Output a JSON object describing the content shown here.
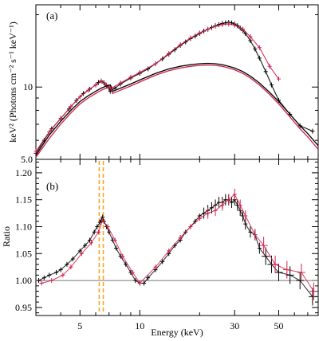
{
  "colors": {
    "black_series": "#000000",
    "red_series": "#d1204a",
    "iron_line": "#f5a623",
    "unity_line": "#777777"
  },
  "chart_data": [
    {
      "panel_label": "(a)",
      "type": "line",
      "x_scale": "log",
      "y_scale": "log",
      "xlim": [
        3.0,
        79.0
      ],
      "ylim": [
        5.0,
        22.0
      ],
      "ylabel": "keV² (Photons cm⁻² s⁻¹ keV⁻¹)",
      "y_ticks": [
        5.0,
        10
      ],
      "y_tick_labels": [
        "5.0",
        "10"
      ],
      "series": [
        {
          "style": "data",
          "color": "black",
          "x": [
            3.0,
            3.3,
            3.6,
            4.0,
            4.4,
            4.8,
            5.2,
            5.6,
            6.0,
            6.2,
            6.4,
            6.6,
            6.8,
            7.0,
            7.1,
            7.5,
            8.0,
            9.0,
            10,
            11,
            12,
            13,
            14,
            15,
            16,
            17,
            18,
            19,
            20,
            21,
            22,
            23,
            24,
            25,
            26,
            27,
            28,
            29,
            30,
            31,
            32,
            33,
            34,
            36,
            38,
            40,
            43,
            46,
            50,
            57,
            64,
            74
          ],
          "y": [
            5.3,
            6.0,
            6.7,
            7.4,
            8.1,
            8.8,
            9.4,
            9.8,
            10.2,
            10.45,
            10.6,
            10.4,
            10.1,
            9.9,
            9.6,
            9.9,
            10.3,
            10.9,
            11.4,
            11.9,
            12.5,
            13.1,
            13.7,
            14.3,
            14.9,
            15.4,
            15.9,
            16.3,
            16.7,
            17.1,
            17.4,
            17.7,
            18.0,
            18.2,
            18.4,
            18.5,
            18.6,
            18.5,
            18.3,
            18.0,
            17.6,
            17.2,
            16.7,
            15.6,
            14.4,
            13.2,
            11.6,
            10.2,
            8.8,
            7.7,
            6.9,
            6.55
          ]
        },
        {
          "style": "data",
          "color": "red",
          "x": [
            3.0,
            3.5,
            4.0,
            4.5,
            5.0,
            5.5,
            6.0,
            6.4,
            6.8,
            7.2,
            8.0,
            9.0,
            10,
            12,
            14,
            16,
            18,
            20,
            22,
            24,
            26,
            28,
            30,
            33,
            36,
            40,
            45,
            50
          ],
          "y": [
            5.4,
            6.5,
            7.4,
            8.3,
            9.1,
            9.7,
            10.2,
            10.55,
            10.2,
            9.9,
            10.4,
            11.0,
            11.5,
            12.5,
            13.8,
            15.0,
            16.0,
            16.8,
            17.4,
            17.9,
            18.2,
            18.3,
            18.1,
            17.4,
            16.2,
            14.6,
            12.2,
            10.8
          ]
        },
        {
          "style": "model",
          "color": "black",
          "x": [
            3.0,
            3.5,
            4.0,
            4.5,
            5.0,
            5.5,
            6.0,
            6.4,
            6.8,
            7.1,
            7.3,
            8.0,
            9.0,
            10,
            12,
            14,
            16,
            18,
            20,
            22,
            24,
            26,
            28,
            30,
            33,
            36,
            40,
            45,
            50,
            57,
            64,
            70,
            79
          ],
          "y": [
            5.2,
            6.3,
            7.2,
            8.0,
            8.7,
            9.2,
            9.6,
            9.9,
            10.1,
            10.2,
            9.6,
            9.9,
            10.3,
            10.7,
            11.4,
            11.9,
            12.2,
            12.4,
            12.5,
            12.55,
            12.5,
            12.4,
            12.2,
            12.0,
            11.6,
            11.1,
            10.4,
            9.5,
            8.7,
            7.7,
            6.9,
            6.4,
            5.7
          ]
        },
        {
          "style": "model",
          "color": "red",
          "x": [
            3.0,
            3.5,
            4.0,
            4.5,
            5.0,
            5.5,
            6.0,
            6.4,
            6.8,
            7.1,
            7.3,
            8.0,
            9.0,
            10,
            12,
            14,
            16,
            18,
            20,
            22,
            24,
            26,
            28,
            30,
            33,
            36,
            40,
            45,
            50,
            57,
            64,
            70,
            79
          ],
          "y": [
            5.1,
            6.1,
            7.0,
            7.8,
            8.5,
            9.0,
            9.4,
            9.7,
            9.9,
            10.0,
            9.4,
            9.7,
            10.1,
            10.5,
            11.2,
            11.7,
            12.0,
            12.2,
            12.3,
            12.35,
            12.3,
            12.2,
            12.0,
            11.8,
            11.4,
            10.9,
            10.2,
            9.3,
            8.5,
            7.5,
            6.7,
            6.2,
            5.5
          ]
        }
      ]
    },
    {
      "panel_label": "(b)",
      "type": "scatter",
      "x_scale": "log",
      "xlim": [
        3.0,
        79.0
      ],
      "ylim": [
        0.935,
        1.225
      ],
      "xlabel": "Energy (keV)",
      "ylabel": "Ratio",
      "x_ticks": [
        5,
        10,
        30,
        50
      ],
      "x_tick_labels": [
        "5",
        "10",
        "30",
        "50"
      ],
      "y_ticks": [
        0.95,
        1.0,
        1.05,
        1.1,
        1.15,
        1.2
      ],
      "y_tick_labels": [
        "0.95",
        "1.00",
        "1.05",
        "1.10",
        "1.15",
        "1.20"
      ],
      "reference_line": 1.0,
      "vertical_lines_keV": [
        6.25,
        6.55
      ],
      "series": [
        {
          "color": "black",
          "x": [
            3.1,
            3.3,
            3.5,
            3.8,
            4.0,
            4.3,
            4.6,
            5.0,
            5.3,
            5.6,
            5.9,
            6.1,
            6.3,
            6.4,
            6.5,
            6.6,
            6.8,
            7.0,
            7.3,
            7.6,
            8.0,
            8.5,
            9.0,
            9.5,
            10,
            10.5,
            11,
            12,
            13,
            14,
            15,
            16,
            17,
            18,
            19,
            20,
            21,
            22,
            23,
            24,
            25,
            26,
            27,
            28,
            29,
            30,
            31,
            32,
            33,
            34,
            36,
            38,
            40,
            43,
            46,
            50,
            57,
            64,
            74
          ],
          "y": [
            1.0,
            1.005,
            1.01,
            1.015,
            1.02,
            1.03,
            1.04,
            1.055,
            1.065,
            1.075,
            1.09,
            1.1,
            1.108,
            1.112,
            1.118,
            1.11,
            1.1,
            1.09,
            1.075,
            1.06,
            1.045,
            1.03,
            1.015,
            1.0,
            0.995,
            0.995,
            1.005,
            1.02,
            1.035,
            1.05,
            1.065,
            1.075,
            1.09,
            1.1,
            1.11,
            1.12,
            1.125,
            1.13,
            1.135,
            1.14,
            1.145,
            1.145,
            1.15,
            1.15,
            1.145,
            1.15,
            1.14,
            1.13,
            1.12,
            1.105,
            1.09,
            1.085,
            1.06,
            1.045,
            1.03,
            1.015,
            1.01,
            1.0,
            0.97
          ]
        },
        {
          "color": "red",
          "x": [
            3.2,
            3.6,
            4.1,
            4.5,
            5.1,
            5.7,
            6.2,
            6.5,
            6.9,
            7.5,
            8.2,
            9.2,
            10,
            12,
            14,
            16,
            18,
            20,
            22,
            24,
            26,
            28,
            30,
            32,
            34,
            38,
            42,
            48,
            55,
            65,
            75
          ],
          "y": [
            0.995,
            1.0,
            1.01,
            1.025,
            1.05,
            1.07,
            1.09,
            1.112,
            1.1,
            1.075,
            1.045,
            1.015,
            0.995,
            1.025,
            1.055,
            1.08,
            1.1,
            1.115,
            1.125,
            1.13,
            1.14,
            1.15,
            1.16,
            1.14,
            1.12,
            1.085,
            1.065,
            1.03,
            1.02,
            1.015,
            0.98
          ]
        }
      ]
    }
  ]
}
